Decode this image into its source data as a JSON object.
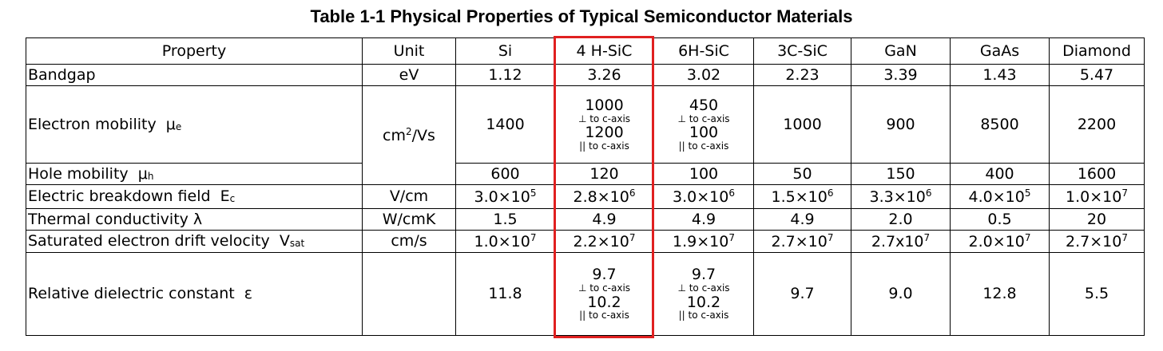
{
  "title": "Table 1-1 Physical Properties of Typical Semiconductor Materials",
  "table": {
    "columns": [
      "Property",
      "Unit",
      "Si",
      "4 H-SiC",
      "6H-SiC",
      "3C-SiC",
      "GaN",
      "GaAs",
      "Diamond"
    ],
    "rows": [
      {
        "property": [
          {
            "text": "Bandgap"
          }
        ],
        "unit": [
          {
            "text": "eV"
          }
        ],
        "values": [
          "1.12",
          "3.26",
          "3.02",
          "2.23",
          "3.39",
          "1.43",
          "5.47"
        ]
      },
      {
        "property": [
          {
            "text": "Electron mobility  μ"
          },
          {
            "sub": "e"
          }
        ],
        "unit": [
          {
            "text": "cm"
          },
          {
            "sup": "2"
          },
          {
            "text": "/Vs"
          }
        ],
        "values": [
          "1400",
          {
            "stack": [
              "1000",
              "⊥ to c-axis",
              "1200",
              "|| to c-axis"
            ]
          },
          {
            "stack": [
              "450",
              "⊥ to c-axis",
              "100",
              "|| to c-axis"
            ]
          },
          "1000",
          "900",
          "8500",
          "2200"
        ]
      },
      {
        "property": [
          {
            "text": "Hole mobility  μ"
          },
          {
            "sub": "h"
          }
        ],
        "values": [
          "600",
          "120",
          "100",
          "50",
          "150",
          "400",
          "1600"
        ]
      },
      {
        "property": [
          {
            "text": "Electric breakdown field  E"
          },
          {
            "sub": "c"
          }
        ],
        "unit": [
          {
            "text": "V/cm"
          }
        ],
        "values": [
          [
            {
              "text": "3.0×10"
            },
            {
              "sup": "5"
            }
          ],
          [
            {
              "text": "2.8×10"
            },
            {
              "sup": "6"
            }
          ],
          [
            {
              "text": "3.0×10"
            },
            {
              "sup": "6"
            }
          ],
          [
            {
              "text": "1.5×10"
            },
            {
              "sup": "6"
            }
          ],
          [
            {
              "text": "3.3×10"
            },
            {
              "sup": "6"
            }
          ],
          [
            {
              "text": "4.0×10"
            },
            {
              "sup": "5"
            }
          ],
          [
            {
              "text": "1.0×10"
            },
            {
              "sup": "7"
            }
          ]
        ]
      },
      {
        "property": [
          {
            "text": "Thermal conductivity λ"
          }
        ],
        "unit": [
          {
            "text": "W/cmK"
          }
        ],
        "values": [
          "1.5",
          "4.9",
          "4.9",
          "4.9",
          "2.0",
          "0.5",
          "20"
        ]
      },
      {
        "property": [
          {
            "text": "Saturated electron drift velocity  V"
          },
          {
            "sub": "sat"
          }
        ],
        "unit": [
          {
            "text": "cm/s"
          }
        ],
        "values": [
          [
            {
              "text": "1.0×10"
            },
            {
              "sup": "7"
            }
          ],
          [
            {
              "text": "2.2×10"
            },
            {
              "sup": "7"
            }
          ],
          [
            {
              "text": "1.9×10"
            },
            {
              "sup": "7"
            }
          ],
          [
            {
              "text": "2.7×10"
            },
            {
              "sup": "7"
            }
          ],
          [
            {
              "text": "2.7x10"
            },
            {
              "sup": "7"
            }
          ],
          [
            {
              "text": "2.0×10"
            },
            {
              "sup": "7"
            }
          ],
          [
            {
              "text": "2.7×10"
            },
            {
              "sup": "7"
            }
          ]
        ]
      },
      {
        "property": [
          {
            "text": "Relative dielectric constant  ε"
          }
        ],
        "values": [
          "11.8",
          {
            "stack": [
              "9.7",
              "⊥ to c-axis",
              "10.2",
              "|| to c-axis"
            ]
          },
          {
            "stack": [
              "9.7",
              "⊥ to c-axis",
              "10.2",
              "|| to c-axis"
            ]
          },
          "9.7",
          "9.0",
          "12.8",
          "5.5"
        ]
      }
    ]
  }
}
